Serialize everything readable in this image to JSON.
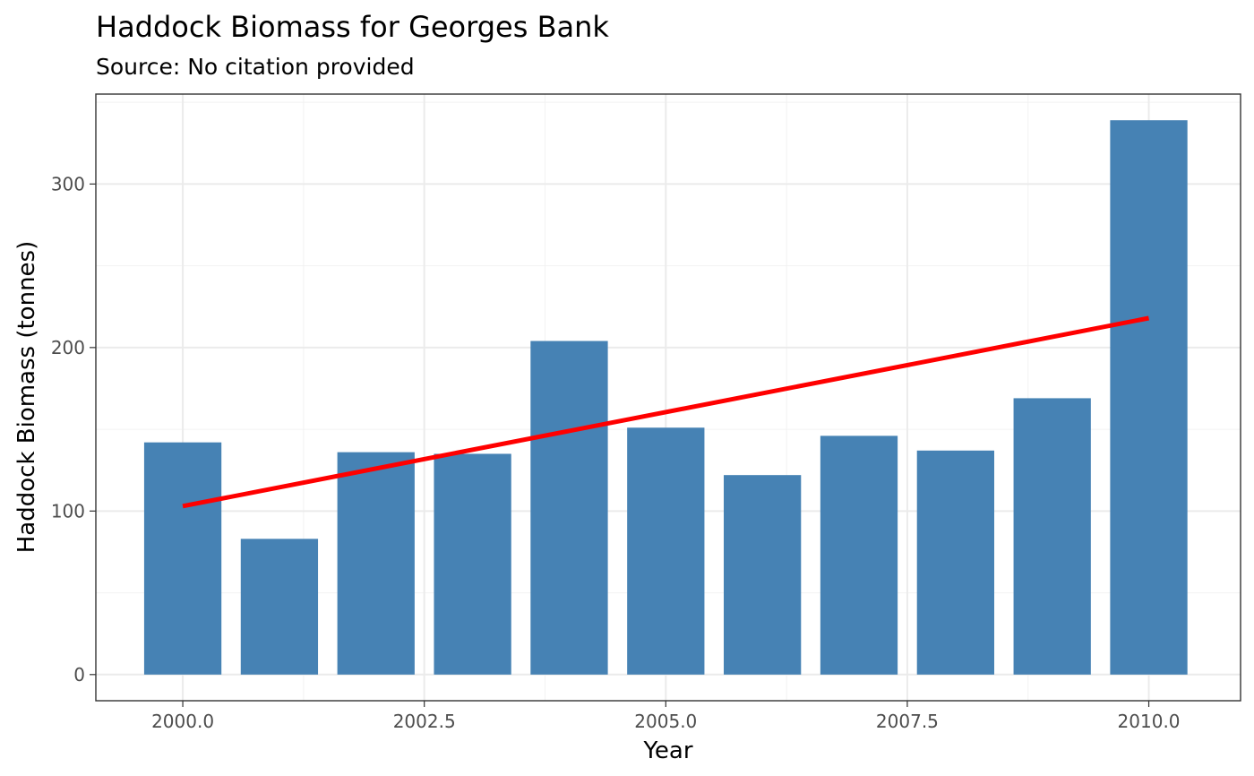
{
  "chart_data": {
    "type": "bar",
    "title": "Haddock Biomass for Georges Bank",
    "subtitle": "Source: No citation provided",
    "xlabel": "Year",
    "ylabel": "Haddock Biomass (tonnes)",
    "x": [
      2000,
      2001,
      2002,
      2003,
      2004,
      2005,
      2006,
      2007,
      2008,
      2009,
      2010
    ],
    "values": [
      142,
      83,
      136,
      135,
      204,
      151,
      122,
      146,
      137,
      169,
      339
    ],
    "xlim": [
      1999.1,
      2010.95
    ],
    "ylim": [
      -16,
      355
    ],
    "xticks": [
      2000,
      2002.5,
      2005,
      2007.5,
      2010
    ],
    "xtick_labels": [
      "2000.0",
      "2002.5",
      "2005.0",
      "2007.5",
      "2010.0"
    ],
    "yticks": [
      0,
      100,
      200,
      300
    ],
    "ytick_labels": [
      "0",
      "100",
      "200",
      "300"
    ],
    "trend_line": {
      "x": [
        2000,
        2010
      ],
      "y": [
        103,
        218
      ],
      "color": "#ff0000"
    },
    "bar_color": "#4682b4",
    "grid": true,
    "legend": "none"
  }
}
